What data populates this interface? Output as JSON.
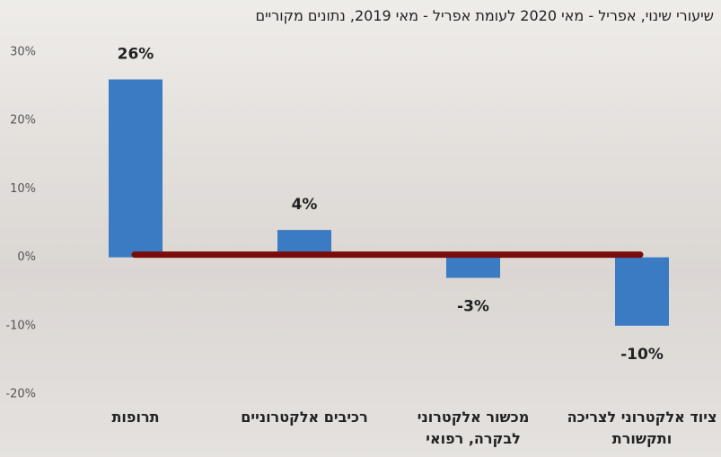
{
  "chart_data": {
    "type": "bar",
    "title": "שיעורי שינוי, אפריל - מאי 2020 לעומת אפריל - מאי 2019, נתונים מקוריים",
    "categories": [
      "תרופות",
      "רכיבים אלקטרוניים",
      "מכשור אלקטרוני לבקרה, רפואי",
      "ציוד אלקטרוני לצריכה ותקשורת"
    ],
    "values": [
      26,
      4,
      -3,
      -10
    ],
    "value_labels": [
      "26%",
      "4%",
      "-3%",
      "-10%"
    ],
    "color": "#3a7bc4",
    "ylim": [
      -20,
      30
    ],
    "yticks": [
      {
        "value": -20,
        "label": "-20%"
      },
      {
        "value": -10,
        "label": "-10%"
      },
      {
        "value": 0,
        "label": "0%"
      },
      {
        "value": 10,
        "label": "10%"
      },
      {
        "value": 20,
        "label": "20%"
      },
      {
        "value": 30,
        "label": "30%"
      }
    ],
    "grid": false
  }
}
